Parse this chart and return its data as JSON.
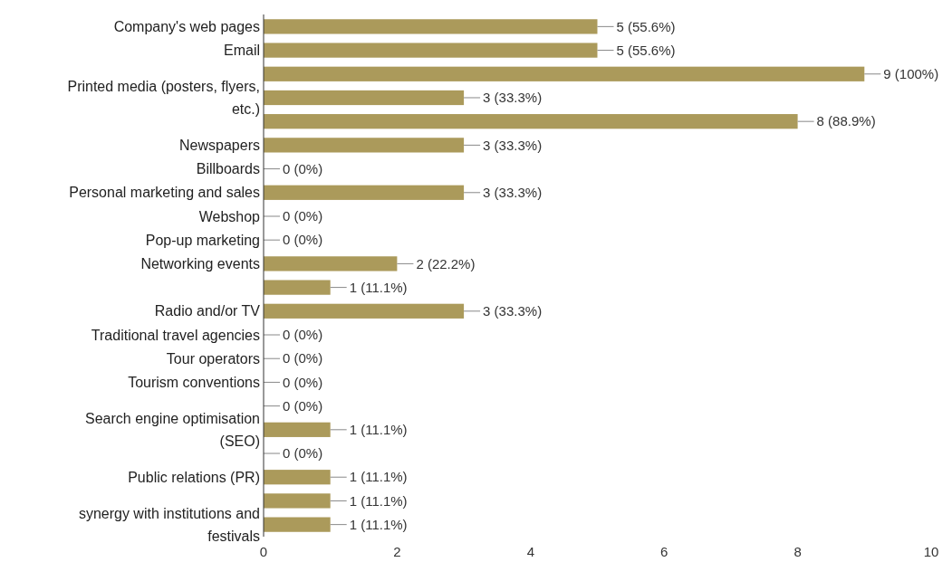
{
  "chart_data": {
    "type": "bar",
    "orientation": "horizontal",
    "color": "#ab9a5b",
    "categories": [
      "Company's web pages",
      "Email",
      null,
      "Printed media (posters, flyers, etc.)",
      null,
      "Newspapers",
      "Billboards",
      "Personal marketing and sales",
      "Webshop",
      "Pop-up marketing",
      "Networking events",
      null,
      "Radio and/or TV",
      "Traditional travel agencies",
      "Tour operators",
      "Tourism conventions",
      null,
      "Search engine optimisation (SEO)",
      null,
      "Public relations (PR)",
      null,
      "synergy with institutions and festivals"
    ],
    "values": [
      5,
      5,
      9,
      3,
      8,
      3,
      0,
      3,
      0,
      0,
      2,
      1,
      3,
      0,
      0,
      0,
      0,
      1,
      0,
      1,
      1,
      1
    ],
    "value_labels": [
      "5 (55.6%)",
      "5 (55.6%)",
      "9 (100%)",
      "3 (33.3%)",
      "8 (88.9%)",
      "3 (33.3%)",
      "0 (0%)",
      "3 (33.3%)",
      "0 (0%)",
      "0 (0%)",
      "2 (22.2%)",
      "1 (11.1%)",
      "3 (33.3%)",
      "0 (0%)",
      "0 (0%)",
      "0 (0%)",
      "0 (0%)",
      "1 (11.1%)",
      "0 (0%)",
      "1 (11.1%)",
      "1 (11.1%)",
      "1 (11.1%)"
    ],
    "xlim": [
      0,
      10
    ],
    "xticks": [
      0,
      2,
      4,
      6,
      8,
      10
    ],
    "grid": false
  }
}
